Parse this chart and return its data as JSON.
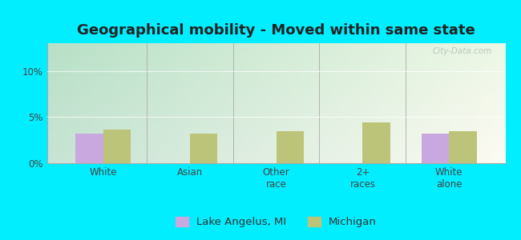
{
  "title": "Geographical mobility - Moved within same state",
  "categories": [
    "White",
    "Asian",
    "Other\nrace",
    "2+\nraces",
    "White\nalone"
  ],
  "lake_angelus_values": [
    3.2,
    0,
    0,
    0,
    3.2
  ],
  "michigan_values": [
    3.6,
    3.2,
    3.5,
    4.4,
    3.5
  ],
  "lake_angelus_color": "#c9a8e0",
  "michigan_color": "#bcc47a",
  "outer_bg": "#00eeff",
  "plot_bg_topleft": "#b8ddc0",
  "plot_bg_topright": "#e0f0e8",
  "plot_bg_bottom": "#e8f8e0",
  "ylim": [
    0,
    13
  ],
  "yticks": [
    0,
    5,
    10
  ],
  "ytick_labels": [
    "0%",
    "5%",
    "10%"
  ],
  "legend_labels": [
    "Lake Angelus, MI",
    "Michigan"
  ],
  "bar_width": 0.32,
  "title_fontsize": 13,
  "tick_fontsize": 8.5,
  "legend_fontsize": 9.5
}
